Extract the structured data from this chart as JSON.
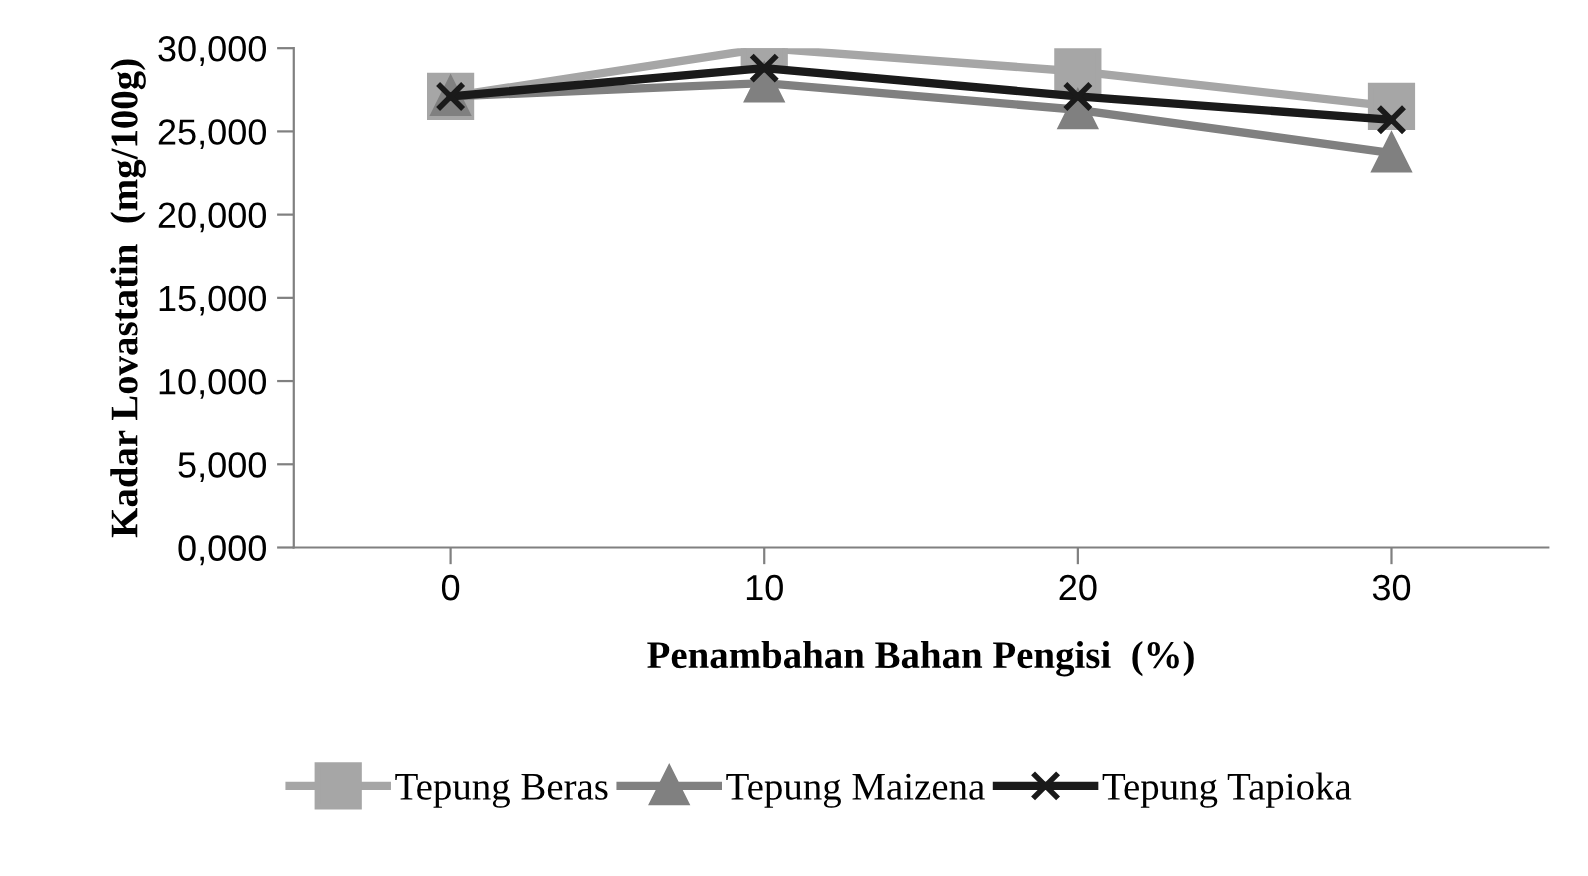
{
  "chart_data": {
    "type": "line",
    "xlabel": "Penambahan Bahan Pengisi  (%)",
    "ylabel": "Kadar Lovastatin  (mg/100g)",
    "categories": [
      "0",
      "10",
      "20",
      "30"
    ],
    "series": [
      {
        "name": "Tepung Beras",
        "color": "#a6a6a6",
        "marker": "square",
        "values": [
          27100,
          30000,
          28600,
          26500
        ]
      },
      {
        "name": "Tepung Maizena",
        "color": "#808080",
        "marker": "triangle",
        "values": [
          27100,
          27900,
          26300,
          23700
        ]
      },
      {
        "name": "Tepung Tapioka",
        "color": "#1a1a1a",
        "marker": "cross",
        "values": [
          27100,
          28800,
          27100,
          25700
        ]
      }
    ],
    "ylim": [
      0,
      30000
    ],
    "yticks": [
      {
        "value": 0,
        "label": "0,000"
      },
      {
        "value": 5000,
        "label": "5,000"
      },
      {
        "value": 10000,
        "label": "10,000"
      },
      {
        "value": 15000,
        "label": "15,000"
      },
      {
        "value": 20000,
        "label": "20,000"
      },
      {
        "value": 25000,
        "label": "25,000"
      },
      {
        "value": 30000,
        "label": "30,000"
      }
    ],
    "grid": false,
    "legend": "bottom",
    "line_style": "solid"
  }
}
